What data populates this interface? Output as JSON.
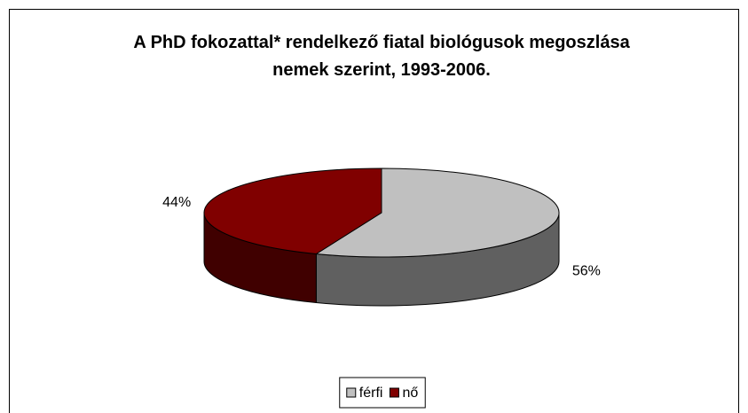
{
  "chart_data": {
    "type": "pie3d",
    "title": "A PhD fokozattal* rendelkező fiatal biológusok megoszlása nemek szerint, 1993-2006.",
    "categories": [
      "férfi",
      "nő"
    ],
    "values": [
      56,
      44
    ],
    "value_labels": [
      "56%",
      "44%"
    ],
    "colors": [
      "#c0c0c0",
      "#800000"
    ],
    "legend": "bottom"
  }
}
